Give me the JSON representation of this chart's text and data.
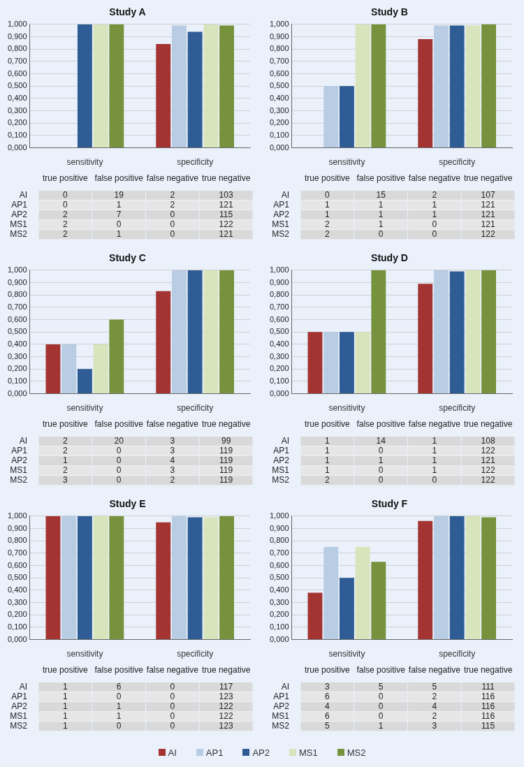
{
  "chart_data": [
    {
      "type": "bar",
      "title": "Study A",
      "categories": [
        "sensitivity",
        "specificity"
      ],
      "ylim": [
        0,
        1
      ],
      "yticks": [
        {
          "value": 0,
          "label": "0,000"
        },
        {
          "value": 0.1,
          "label": "0,100"
        },
        {
          "value": 0.2,
          "label": "0,200"
        },
        {
          "value": 0.3,
          "label": "0,300"
        },
        {
          "value": 0.4,
          "label": "0,400"
        },
        {
          "value": 0.5,
          "label": "0,500"
        },
        {
          "value": 0.6,
          "label": "0,600"
        },
        {
          "value": 0.7,
          "label": "0,700"
        },
        {
          "value": 0.8,
          "label": "0,800"
        },
        {
          "value": 0.9,
          "label": "0,900"
        },
        {
          "value": 1,
          "label": "1,000"
        }
      ],
      "grid": "y",
      "legend": "bottom",
      "series": [
        {
          "name": "AI",
          "color": "#a33432",
          "values": [
            0,
            0.84
          ]
        },
        {
          "name": "AP1",
          "color": "#b8cce4",
          "values": [
            0,
            0.99
          ]
        },
        {
          "name": "AP2",
          "color": "#2f5c94",
          "values": [
            1,
            0.94
          ]
        },
        {
          "name": "MS1",
          "color": "#d8e4bc",
          "values": [
            1,
            1
          ]
        },
        {
          "name": "MS2",
          "color": "#76923c",
          "values": [
            1,
            0.99
          ]
        }
      ]
    },
    {
      "type": "heatmap",
      "categories": [
        "true positive",
        "false positive",
        "false negative",
        "true negative"
      ],
      "y_categories": [
        "AI",
        "AP1",
        "AP2",
        "MS1",
        "MS2"
      ],
      "data_labels": true,
      "cells": [
        [
          0,
          19,
          2,
          103
        ],
        [
          0,
          1,
          2,
          121
        ],
        [
          2,
          7,
          0,
          115
        ],
        [
          2,
          0,
          0,
          122
        ],
        [
          2,
          1,
          0,
          121
        ]
      ]
    },
    {
      "type": "bar",
      "title": "Study B",
      "categories": [
        "sensitivity",
        "specificity"
      ],
      "ylim": [
        0,
        1
      ],
      "yticks": [
        {
          "value": 0,
          "label": "0,000"
        },
        {
          "value": 0.1,
          "label": "0,100"
        },
        {
          "value": 0.2,
          "label": "0,200"
        },
        {
          "value": 0.3,
          "label": "0,300"
        },
        {
          "value": 0.4,
          "label": "0,400"
        },
        {
          "value": 0.5,
          "label": "0,500"
        },
        {
          "value": 0.6,
          "label": "0,600"
        },
        {
          "value": 0.7,
          "label": "0,700"
        },
        {
          "value": 0.8,
          "label": "0,800"
        },
        {
          "value": 0.9,
          "label": "0,900"
        },
        {
          "value": 1,
          "label": "1,000"
        }
      ],
      "grid": "y",
      "series": [
        {
          "color": "#a33432",
          "values": [
            0,
            0.88
          ]
        },
        {
          "color": "#b8cce4",
          "values": [
            0.5,
            0.99
          ]
        },
        {
          "color": "#2f5c94",
          "values": [
            0.5,
            0.99
          ]
        },
        {
          "color": "#d8e4bc",
          "values": [
            1,
            0.99
          ]
        },
        {
          "color": "#76923c",
          "values": [
            1,
            1
          ]
        }
      ]
    },
    {
      "type": "heatmap",
      "categories": [
        "true positive",
        "false positive",
        "false negative",
        "true negative"
      ],
      "y_categories": [
        "AI",
        "AP1",
        "AP2",
        "MS1",
        "MS2"
      ],
      "data_labels": true,
      "cells": [
        [
          0,
          15,
          2,
          107
        ],
        [
          1,
          1,
          1,
          121
        ],
        [
          1,
          1,
          1,
          121
        ],
        [
          2,
          1,
          0,
          121
        ],
        [
          2,
          0,
          0,
          122
        ]
      ]
    },
    {
      "type": "bar",
      "title": "Study C",
      "categories": [
        "sensitivity",
        "specificity"
      ],
      "ylim": [
        0,
        1
      ],
      "yticks": [
        {
          "value": 0,
          "label": "0,000"
        },
        {
          "value": 0.1,
          "label": "0,100"
        },
        {
          "value": 0.2,
          "label": "0,200"
        },
        {
          "value": 0.3,
          "label": "0,300"
        },
        {
          "value": 0.4,
          "label": "0,400"
        },
        {
          "value": 0.5,
          "label": "0,500"
        },
        {
          "value": 0.6,
          "label": "0,600"
        },
        {
          "value": 0.7,
          "label": "0,700"
        },
        {
          "value": 0.8,
          "label": "0,800"
        },
        {
          "value": 0.9,
          "label": "0,900"
        },
        {
          "value": 1,
          "label": "1,000"
        }
      ],
      "grid": "y",
      "series": [
        {
          "color": "#a33432",
          "values": [
            0.4,
            0.83
          ]
        },
        {
          "color": "#b8cce4",
          "values": [
            0.4,
            1
          ]
        },
        {
          "color": "#2f5c94",
          "values": [
            0.2,
            1
          ]
        },
        {
          "color": "#d8e4bc",
          "values": [
            0.4,
            1
          ]
        },
        {
          "color": "#76923c",
          "values": [
            0.6,
            1
          ]
        }
      ]
    },
    {
      "type": "heatmap",
      "categories": [
        "true positive",
        "false positive",
        "false negative",
        "true negative"
      ],
      "y_categories": [
        "AI",
        "AP1",
        "AP2",
        "MS1",
        "MS2"
      ],
      "data_labels": true,
      "cells": [
        [
          2,
          20,
          3,
          99
        ],
        [
          2,
          0,
          3,
          119
        ],
        [
          1,
          0,
          4,
          119
        ],
        [
          2,
          0,
          3,
          119
        ],
        [
          3,
          0,
          2,
          119
        ]
      ]
    },
    {
      "type": "bar",
      "title": "Study D",
      "categories": [
        "sensitivity",
        "specificity"
      ],
      "ylim": [
        0,
        1
      ],
      "yticks": [
        {
          "value": 0,
          "label": "0,000"
        },
        {
          "value": 0.1,
          "label": "0,100"
        },
        {
          "value": 0.2,
          "label": "0,200"
        },
        {
          "value": 0.3,
          "label": "0,300"
        },
        {
          "value": 0.4,
          "label": "0,400"
        },
        {
          "value": 0.5,
          "label": "0,500"
        },
        {
          "value": 0.6,
          "label": "0,600"
        },
        {
          "value": 0.7,
          "label": "0,700"
        },
        {
          "value": 0.8,
          "label": "0,800"
        },
        {
          "value": 0.9,
          "label": "0,900"
        },
        {
          "value": 1,
          "label": "1,000"
        }
      ],
      "grid": "y",
      "series": [
        {
          "color": "#a33432",
          "values": [
            0.5,
            0.89
          ]
        },
        {
          "color": "#b8cce4",
          "values": [
            0.5,
            1
          ]
        },
        {
          "color": "#2f5c94",
          "values": [
            0.5,
            0.99
          ]
        },
        {
          "color": "#d8e4bc",
          "values": [
            0.5,
            1
          ]
        },
        {
          "color": "#76923c",
          "values": [
            1,
            1
          ]
        }
      ]
    },
    {
      "type": "heatmap",
      "categories": [
        "true positive",
        "false positive",
        "false negative",
        "true negative"
      ],
      "y_categories": [
        "AI",
        "AP1",
        "AP2",
        "MS1",
        "MS2"
      ],
      "data_labels": true,
      "cells": [
        [
          1,
          14,
          1,
          108
        ],
        [
          1,
          0,
          1,
          122
        ],
        [
          1,
          1,
          1,
          121
        ],
        [
          1,
          0,
          1,
          122
        ],
        [
          2,
          0,
          0,
          122
        ]
      ]
    },
    {
      "type": "bar",
      "title": "Study E",
      "categories": [
        "sensitivity",
        "specificity"
      ],
      "ylim": [
        0,
        1
      ],
      "yticks": [
        {
          "value": 0,
          "label": "0,000"
        },
        {
          "value": 0.1,
          "label": "0,100"
        },
        {
          "value": 0.2,
          "label": "0,200"
        },
        {
          "value": 0.3,
          "label": "0,300"
        },
        {
          "value": 0.4,
          "label": "0,400"
        },
        {
          "value": 0.5,
          "label": "0,500"
        },
        {
          "value": 0.6,
          "label": "0,600"
        },
        {
          "value": 0.7,
          "label": "0,700"
        },
        {
          "value": 0.8,
          "label": "0,800"
        },
        {
          "value": 0.9,
          "label": "0,900"
        },
        {
          "value": 1,
          "label": "1,000"
        }
      ],
      "grid": "y",
      "series": [
        {
          "color": "#a33432",
          "values": [
            1,
            0.95
          ]
        },
        {
          "color": "#b8cce4",
          "values": [
            1,
            1
          ]
        },
        {
          "color": "#2f5c94",
          "values": [
            1,
            0.99
          ]
        },
        {
          "color": "#d8e4bc",
          "values": [
            1,
            0.99
          ]
        },
        {
          "color": "#76923c",
          "values": [
            1,
            1
          ]
        }
      ]
    },
    {
      "type": "heatmap",
      "categories": [
        "true positive",
        "false positive",
        "false negative",
        "true negative"
      ],
      "y_categories": [
        "AI",
        "AP1",
        "AP2",
        "MS1",
        "MS2"
      ],
      "data_labels": true,
      "cells": [
        [
          1,
          6,
          0,
          117
        ],
        [
          1,
          0,
          0,
          123
        ],
        [
          1,
          1,
          0,
          122
        ],
        [
          1,
          1,
          0,
          122
        ],
        [
          1,
          0,
          0,
          123
        ]
      ]
    },
    {
      "type": "bar",
      "title": "Study F",
      "categories": [
        "sensitivity",
        "specificity"
      ],
      "ylim": [
        0,
        1
      ],
      "yticks": [
        {
          "value": 0,
          "label": "0,000"
        },
        {
          "value": 0.1,
          "label": "0,100"
        },
        {
          "value": 0.2,
          "label": "0,200"
        },
        {
          "value": 0.3,
          "label": "0,300"
        },
        {
          "value": 0.4,
          "label": "0,400"
        },
        {
          "value": 0.5,
          "label": "0,500"
        },
        {
          "value": 0.6,
          "label": "0,600"
        },
        {
          "value": 0.7,
          "label": "0,700"
        },
        {
          "value": 0.8,
          "label": "0,800"
        },
        {
          "value": 0.9,
          "label": "0,900"
        },
        {
          "value": 1,
          "label": "1,000"
        }
      ],
      "grid": "y",
      "series": [
        {
          "color": "#a33432",
          "values": [
            0.38,
            0.96
          ]
        },
        {
          "color": "#b8cce4",
          "values": [
            0.75,
            1
          ]
        },
        {
          "color": "#2f5c94",
          "values": [
            0.5,
            1
          ]
        },
        {
          "color": "#d8e4bc",
          "values": [
            0.75,
            1
          ]
        },
        {
          "color": "#76923c",
          "values": [
            0.63,
            0.99
          ]
        }
      ]
    },
    {
      "type": "heatmap",
      "categories": [
        "true positive",
        "false positive",
        "false negative",
        "true negative"
      ],
      "y_categories": [
        "AI",
        "AP1",
        "AP2",
        "MS1",
        "MS2"
      ],
      "data_labels": true,
      "cells": [
        [
          3,
          5,
          5,
          111
        ],
        [
          6,
          0,
          2,
          116
        ],
        [
          4,
          0,
          4,
          116
        ],
        [
          6,
          0,
          2,
          116
        ],
        [
          5,
          1,
          3,
          115
        ]
      ]
    }
  ]
}
